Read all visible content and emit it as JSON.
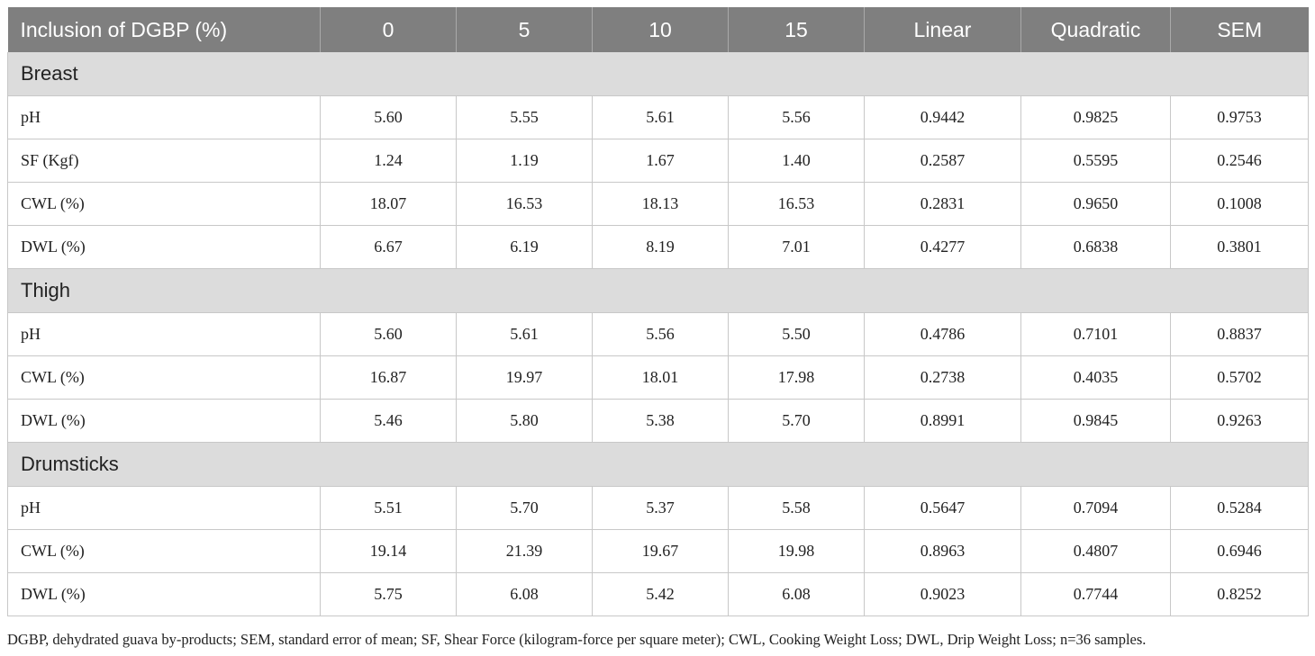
{
  "table": {
    "headers": [
      "Inclusion of DGBP (%)",
      "0",
      "5",
      "10",
      "15",
      "Linear",
      "Quadratic",
      "SEM"
    ],
    "sections": [
      {
        "title": "Breast",
        "rows": [
          [
            "pH",
            "5.60",
            "5.55",
            "5.61",
            "5.56",
            "0.9442",
            "0.9825",
            "0.9753"
          ],
          [
            "SF (Kgf)",
            "1.24",
            "1.19",
            "1.67",
            "1.40",
            "0.2587",
            "0.5595",
            "0.2546"
          ],
          [
            "CWL (%)",
            "18.07",
            "16.53",
            "18.13",
            "16.53",
            "0.2831",
            "0.9650",
            "0.1008"
          ],
          [
            "DWL (%)",
            "6.67",
            "6.19",
            "8.19",
            "7.01",
            "0.4277",
            "0.6838",
            "0.3801"
          ]
        ]
      },
      {
        "title": "Thigh",
        "rows": [
          [
            "pH",
            "5.60",
            "5.61",
            "5.56",
            "5.50",
            "0.4786",
            "0.7101",
            "0.8837"
          ],
          [
            "CWL (%)",
            "16.87",
            "19.97",
            "18.01",
            "17.98",
            "0.2738",
            "0.4035",
            "0.5702"
          ],
          [
            "DWL (%)",
            "5.46",
            "5.80",
            "5.38",
            "5.70",
            "0.8991",
            "0.9845",
            "0.9263"
          ]
        ]
      },
      {
        "title": "Drumsticks",
        "rows": [
          [
            "pH",
            "5.51",
            "5.70",
            "5.37",
            "5.58",
            "0.5647",
            "0.7094",
            "0.5284"
          ],
          [
            "CWL (%)",
            "19.14",
            "21.39",
            "19.67",
            "19.98",
            "0.8963",
            "0.4807",
            "0.6946"
          ],
          [
            "DWL (%)",
            "5.75",
            "6.08",
            "5.42",
            "6.08",
            "0.9023",
            "0.7744",
            "0.8252"
          ]
        ]
      }
    ]
  },
  "footnote": "DGBP, dehydrated guava by-products; SEM, standard error of mean; SF, Shear Force (kilogram-force per square meter); CWL, Cooking Weight Loss; DWL, Drip Weight Loss; n=36 samples."
}
